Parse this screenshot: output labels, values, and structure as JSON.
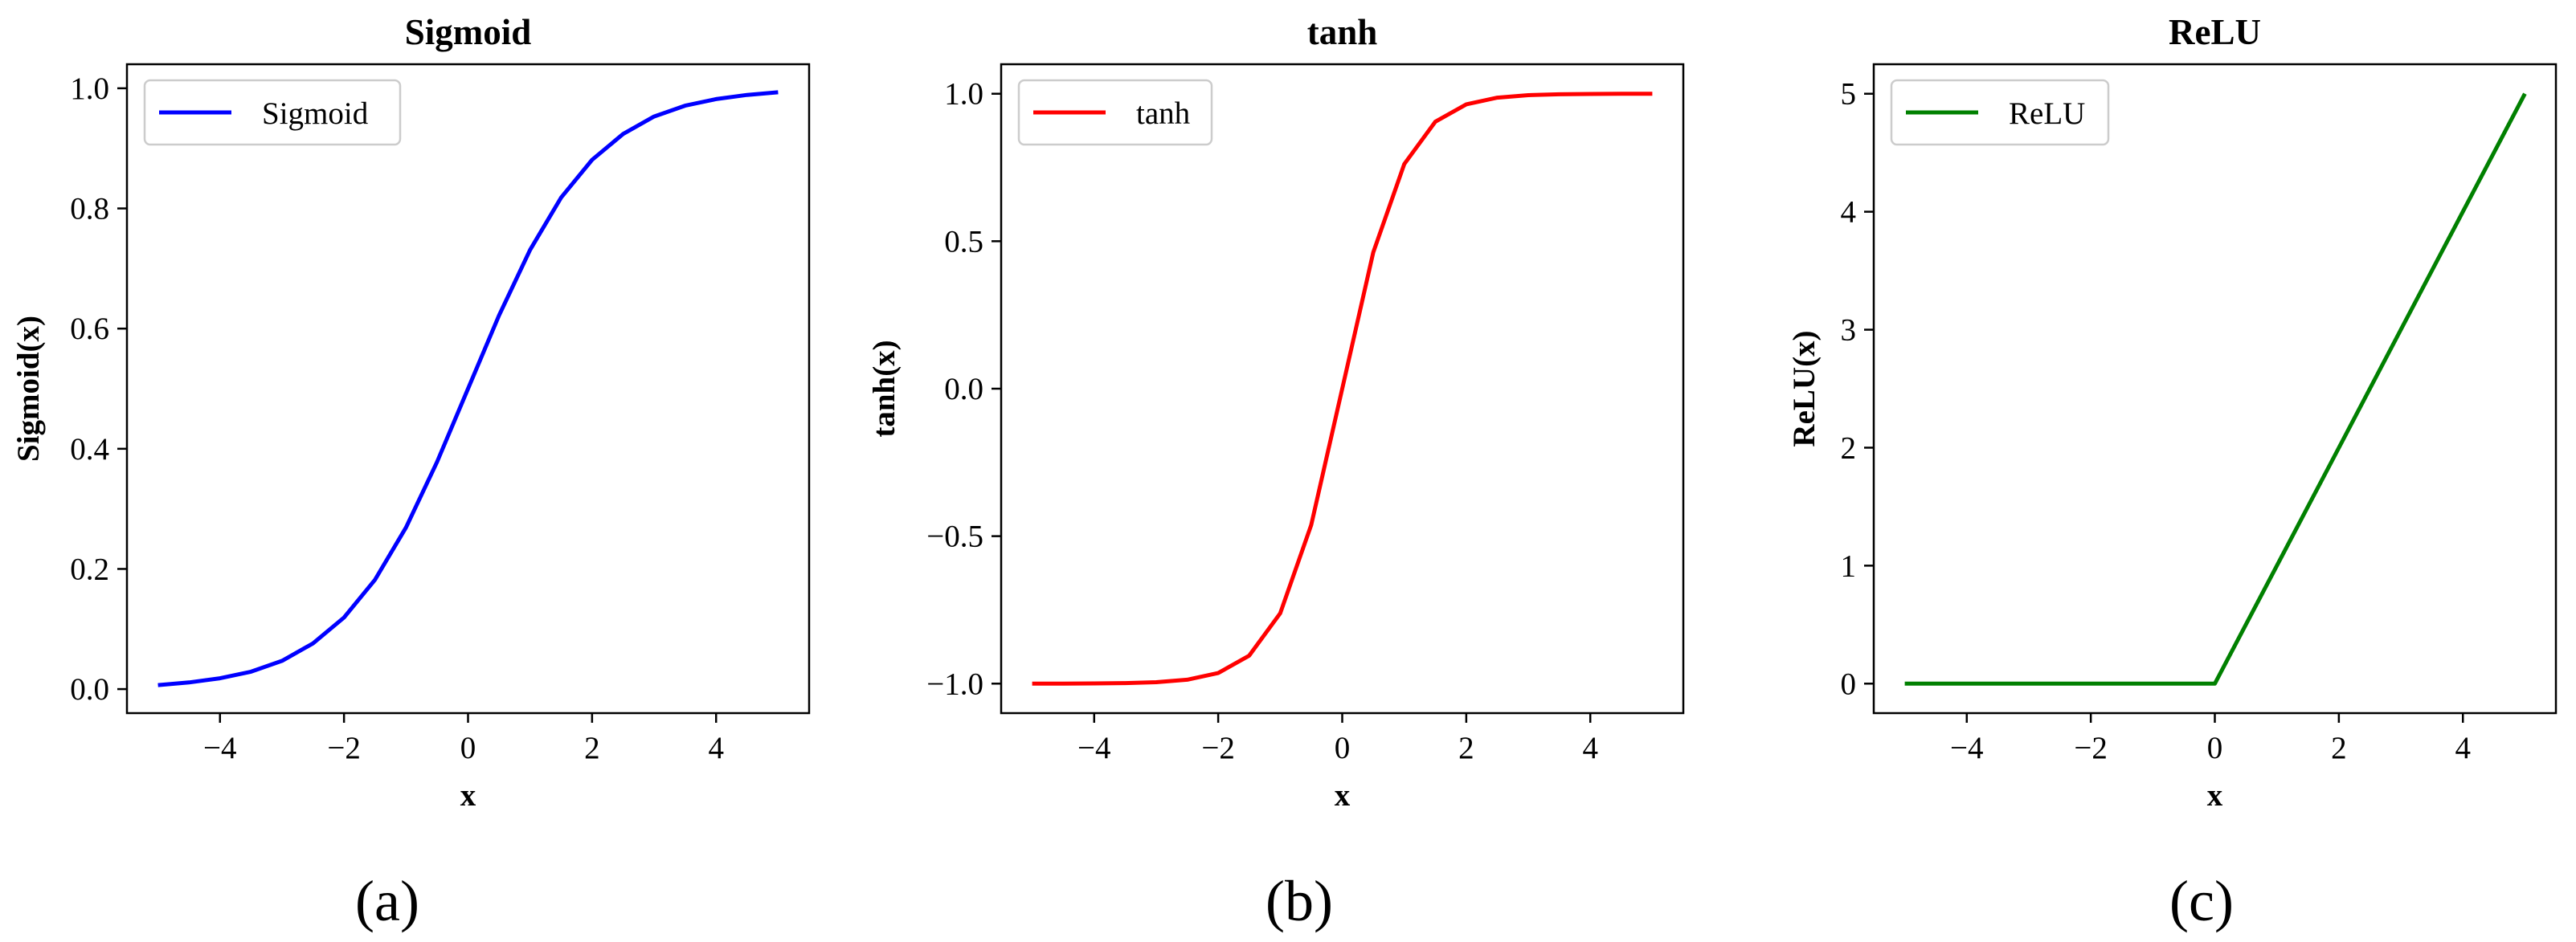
{
  "chart_data": [
    {
      "type": "line",
      "title": "Sigmoid",
      "xlabel": "x",
      "ylabel": "Sigmoid(x)",
      "caption": "(a)",
      "xlim": [
        -5.5,
        5.5
      ],
      "ylim": [
        -0.04,
        1.04
      ],
      "xticks": [
        -4,
        -2,
        0,
        2,
        4
      ],
      "xtick_labels": [
        "−4",
        "−2",
        "0",
        "2",
        "4"
      ],
      "yticks": [
        0.0,
        0.2,
        0.4,
        0.6,
        0.8,
        1.0
      ],
      "ytick_labels": [
        "0.0",
        "0.2",
        "0.4",
        "0.6",
        "0.8",
        "1.0"
      ],
      "legend_position": "top-left",
      "grid": false,
      "series": [
        {
          "name": "Sigmoid",
          "color": "#0000ff",
          "x": [
            -5,
            -4.5,
            -4,
            -3.5,
            -3,
            -2.5,
            -2,
            -1.5,
            -1,
            -0.5,
            0,
            0.5,
            1,
            1.5,
            2,
            2.5,
            3,
            3.5,
            4,
            4.5,
            5
          ],
          "y": [
            0.0067,
            0.011,
            0.018,
            0.029,
            0.047,
            0.076,
            0.119,
            0.182,
            0.269,
            0.378,
            0.5,
            0.622,
            0.731,
            0.818,
            0.881,
            0.924,
            0.953,
            0.971,
            0.982,
            0.989,
            0.9933
          ]
        }
      ]
    },
    {
      "type": "line",
      "title": "tanh",
      "xlabel": "x",
      "ylabel": "tanh(x)",
      "caption": "(b)",
      "xlim": [
        -5.5,
        5.5
      ],
      "ylim": [
        -1.1,
        1.1
      ],
      "xticks": [
        -4,
        -2,
        0,
        2,
        4
      ],
      "xtick_labels": [
        "−4",
        "−2",
        "0",
        "2",
        "4"
      ],
      "yticks": [
        -1.0,
        -0.5,
        0.0,
        0.5,
        1.0
      ],
      "ytick_labels": [
        "−1.0",
        "−0.5",
        "0.0",
        "0.5",
        "1.0"
      ],
      "legend_position": "top-left",
      "grid": false,
      "series": [
        {
          "name": "tanh",
          "color": "#ff0000",
          "x": [
            -5,
            -4.5,
            -4,
            -3.5,
            -3,
            -2.5,
            -2,
            -1.5,
            -1,
            -0.5,
            0,
            0.5,
            1,
            1.5,
            2,
            2.5,
            3,
            3.5,
            4,
            4.5,
            5
          ],
          "y": [
            -0.9999,
            -0.9998,
            -0.9993,
            -0.9982,
            -0.9951,
            -0.9866,
            -0.964,
            -0.9051,
            -0.7616,
            -0.4621,
            0,
            0.4621,
            0.7616,
            0.9051,
            0.964,
            0.9866,
            0.9951,
            0.9982,
            0.9993,
            0.9998,
            0.9999
          ]
        }
      ]
    },
    {
      "type": "line",
      "title": "ReLU",
      "xlabel": "x",
      "ylabel": "ReLU(x)",
      "caption": "(c)",
      "xlim": [
        -5.5,
        5.5
      ],
      "ylim": [
        -0.25,
        5.25
      ],
      "xticks": [
        -4,
        -2,
        0,
        2,
        4
      ],
      "xtick_labels": [
        "−4",
        "−2",
        "0",
        "2",
        "4"
      ],
      "yticks": [
        0,
        1,
        2,
        3,
        4,
        5
      ],
      "ytick_labels": [
        "0",
        "1",
        "2",
        "3",
        "4",
        "5"
      ],
      "legend_position": "top-left",
      "grid": false,
      "series": [
        {
          "name": "ReLU",
          "color": "#008000",
          "x": [
            -5,
            -4,
            -3,
            -2,
            -1,
            -0.1,
            0,
            0.1,
            1,
            2,
            3,
            4,
            5
          ],
          "y": [
            0,
            0,
            0,
            0,
            0,
            0,
            0,
            0.1,
            1,
            2,
            3,
            4,
            5
          ]
        }
      ]
    }
  ]
}
